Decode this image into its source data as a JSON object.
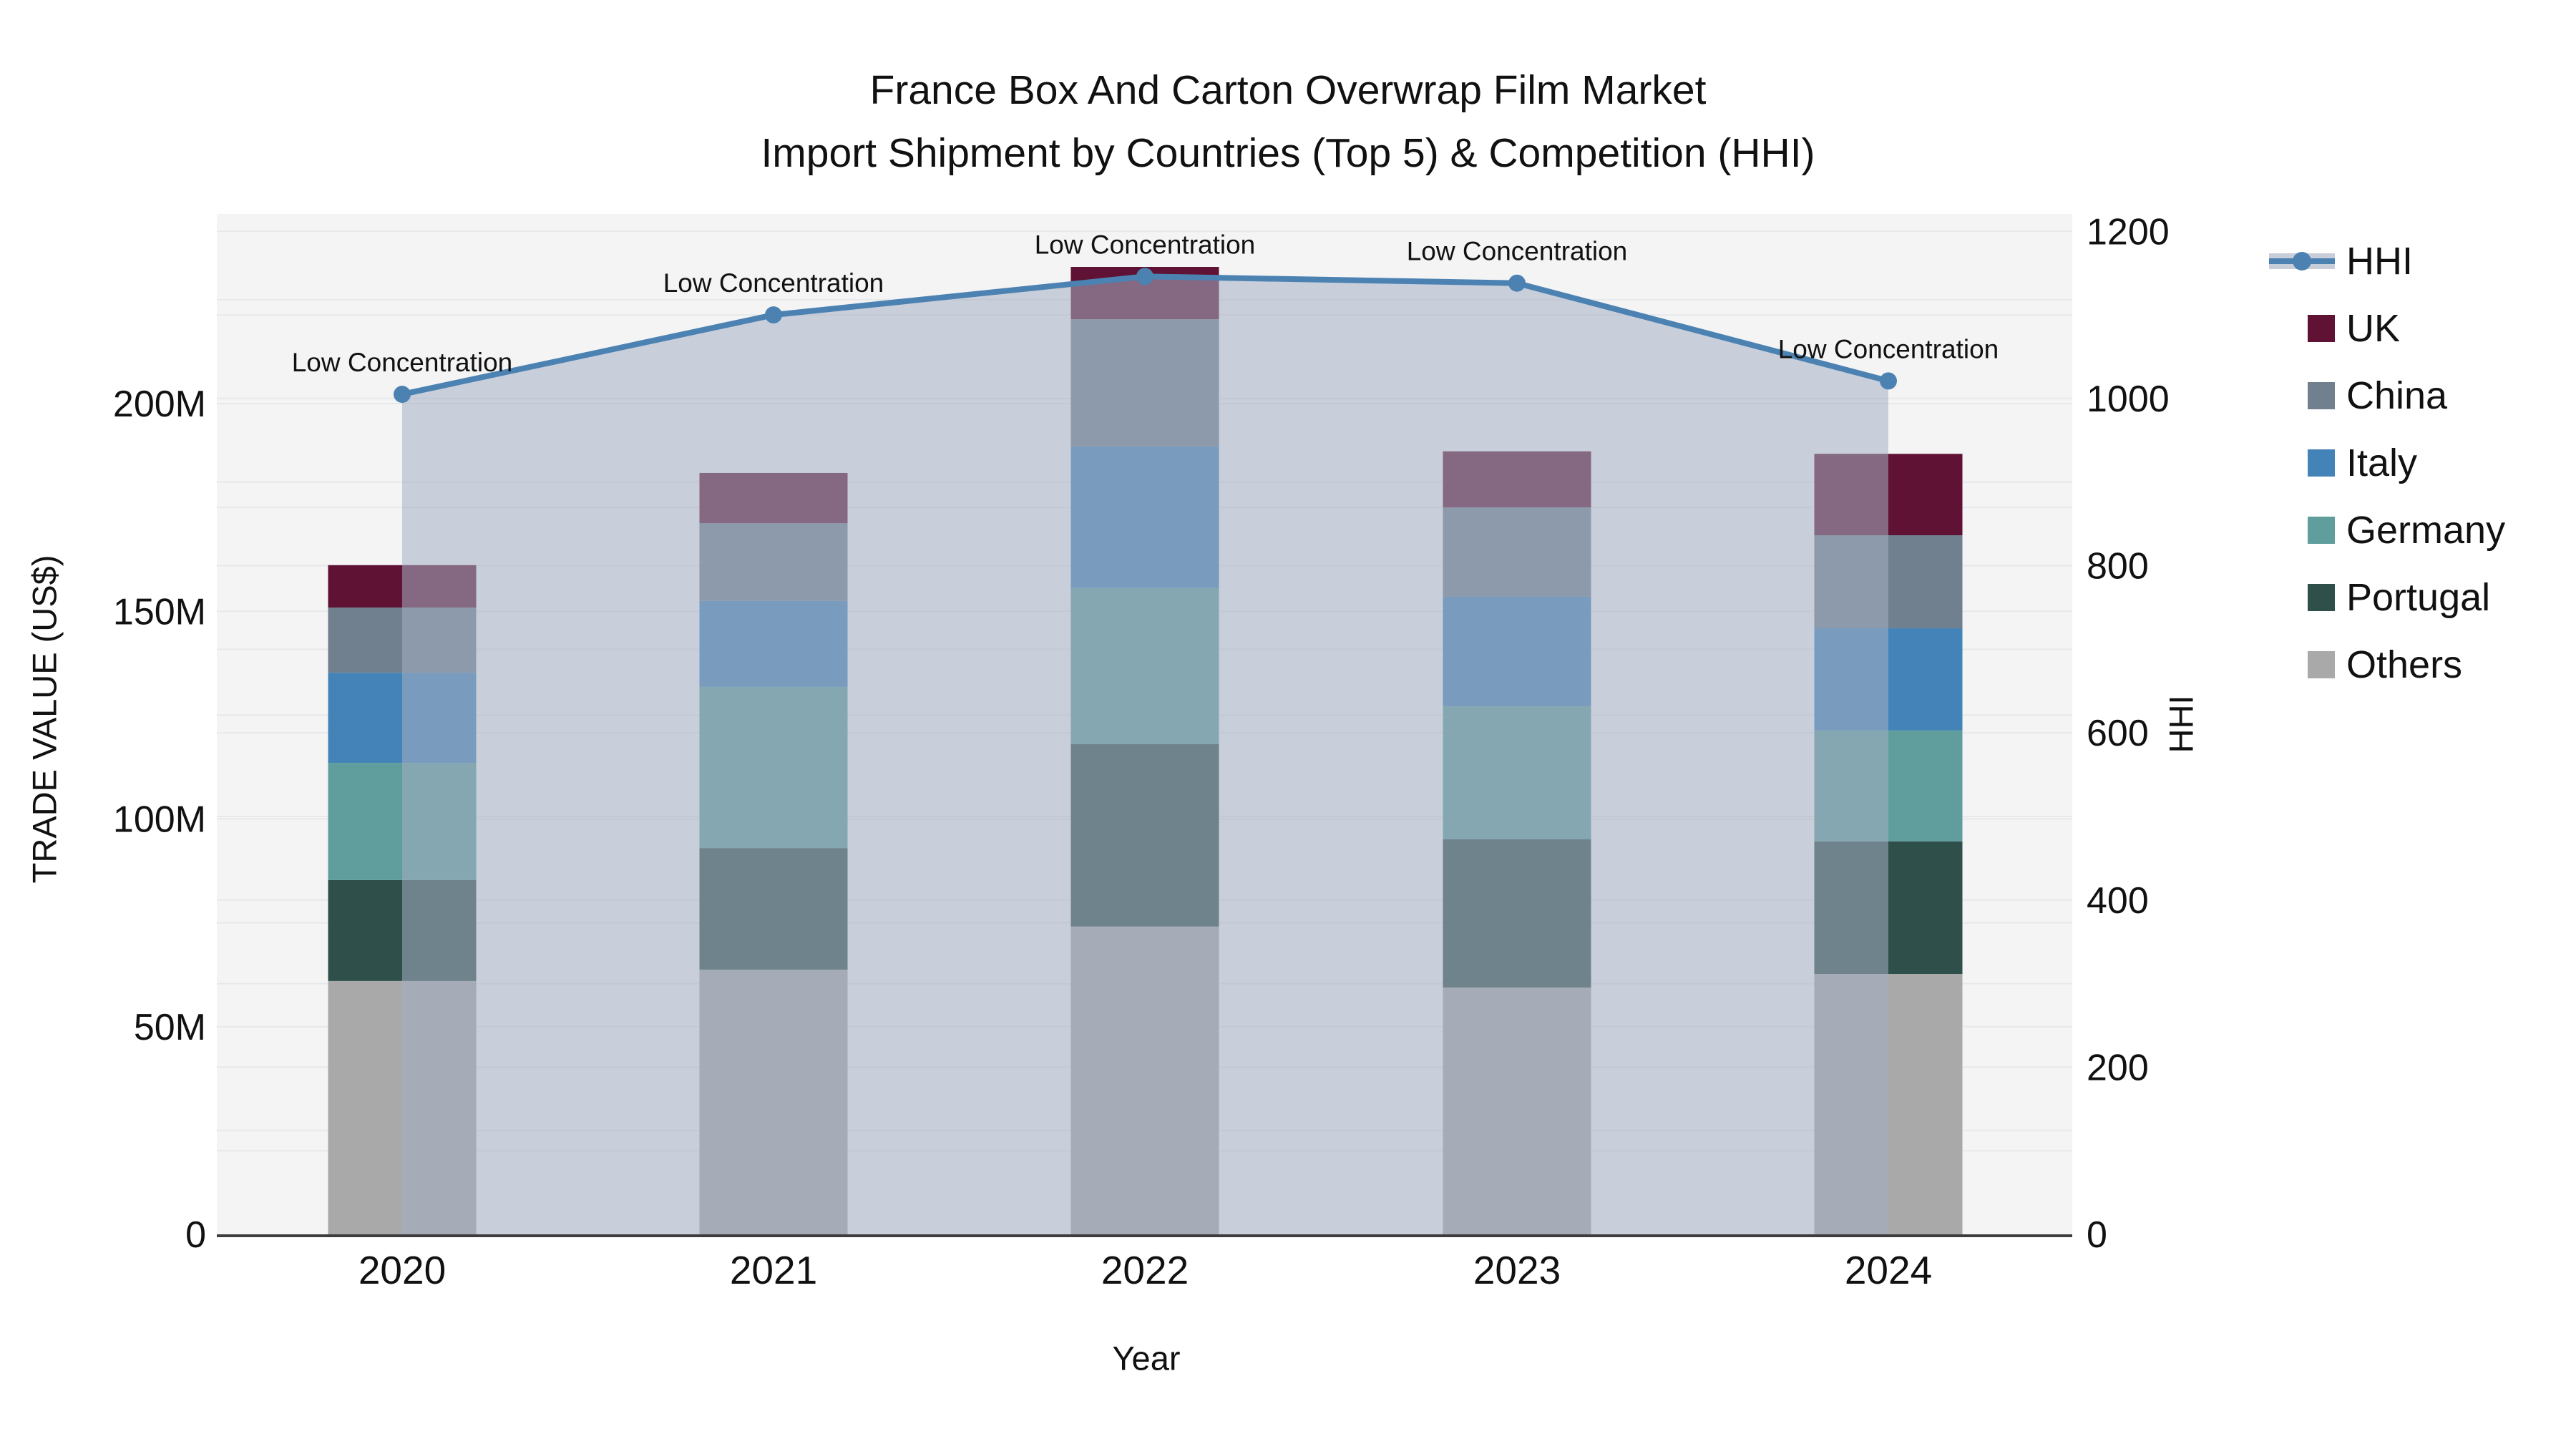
{
  "title": {
    "line1": "France Box And Carton Overwrap Film Market",
    "line2": "Import Shipment by Countries (Top 5) & Competition (HHI)"
  },
  "axes": {
    "left": {
      "title": "TRADE VALUE (US$)",
      "ticks": [
        "0",
        "50M",
        "100M",
        "150M",
        "200M"
      ]
    },
    "right": {
      "title": "HHI",
      "ticks": [
        "0",
        "200",
        "400",
        "600",
        "800",
        "1000",
        "1200"
      ]
    },
    "x": {
      "title": "Year",
      "ticks": [
        "2020",
        "2021",
        "2022",
        "2023",
        "2024"
      ]
    }
  },
  "legend": {
    "items": [
      {
        "label": "HHI",
        "type": "line",
        "color": "#4C82B2",
        "band_color": "#C8CED9"
      },
      {
        "label": "UK",
        "type": "box",
        "color": "#5F1233"
      },
      {
        "label": "China",
        "type": "box",
        "color": "#70808F"
      },
      {
        "label": "Italy",
        "type": "box",
        "color": "#4483B8"
      },
      {
        "label": "Germany",
        "type": "box",
        "color": "#5F9E9C"
      },
      {
        "label": "Portugal",
        "type": "box",
        "color": "#2F4F4B"
      },
      {
        "label": "Others",
        "type": "box",
        "color": "#A9A9A9"
      }
    ]
  },
  "chart_data": {
    "type": "bar",
    "subtype": "stacked-bars-with-line-dual-axis",
    "title": "France Box And Carton Overwrap Film Market — Import Shipment by Countries (Top 5) & Competition (HHI)",
    "xlabel": "Year",
    "ylabel_left": "TRADE VALUE (US$)",
    "ylabel_right": "HHI",
    "categories": [
      "2020",
      "2021",
      "2022",
      "2023",
      "2024"
    ],
    "bar_value_unit": "USD millions",
    "series": [
      {
        "name": "UK",
        "color": "#5F1233",
        "values": [
          10.2,
          12.1,
          12.6,
          13.5,
          19.6
        ]
      },
      {
        "name": "China",
        "color": "#70808F",
        "values": [
          15.7,
          18.7,
          30.6,
          21.5,
          22.4
        ]
      },
      {
        "name": "Italy",
        "color": "#4483B8",
        "values": [
          21.7,
          20.7,
          34.1,
          26.4,
          24.6
        ]
      },
      {
        "name": "Germany",
        "color": "#5F9E9C",
        "values": [
          28.2,
          38.8,
          37.6,
          32.0,
          26.7
        ]
      },
      {
        "name": "Portugal",
        "color": "#2F4F4B",
        "values": [
          24.3,
          29.3,
          43.9,
          35.7,
          31.9
        ]
      },
      {
        "name": "Others",
        "color": "#A9A9A9",
        "values": [
          61.0,
          63.7,
          74.1,
          59.4,
          62.7
        ]
      }
    ],
    "stack_note": "bars stacked bottom-to-top: Others, Portugal, Germany, Italy, China, UK",
    "bar_totals_musd": [
      161.1,
      183.3,
      232.9,
      188.5,
      187.9
    ],
    "line_series": {
      "name": "HHI",
      "color": "#4C82B2",
      "area_fill_color": "#A4AEC2",
      "area_fill_opacity": 0.55,
      "values": [
        1005,
        1100,
        1146,
        1138,
        1021
      ],
      "point_annotations": [
        "Low Concentration",
        "Low Concentration",
        "Low Concentration",
        "Low Concentration",
        "Low Concentration"
      ]
    },
    "ylim_left_musd": [
      0,
      245
    ],
    "ylim_right": [
      0,
      1225
    ],
    "grid": true,
    "legend_position": "right",
    "plot_bg_color": "#F4F4F5",
    "grid_color": "#E7E8EA",
    "axis_line_color": "#3D3D3D"
  }
}
